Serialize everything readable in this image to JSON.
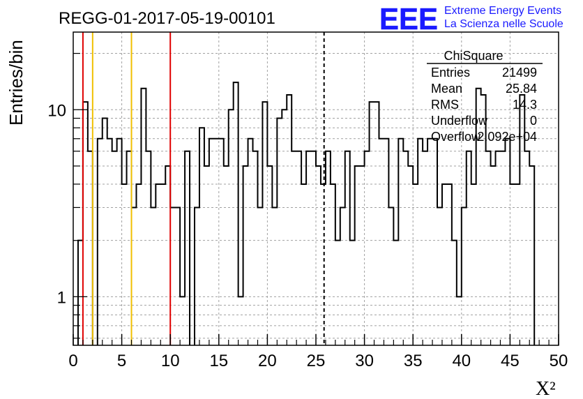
{
  "header": {
    "run_title": "REGG-01-2017-05-19-00101",
    "logo_text": "EEE",
    "org_line1": "Extreme Energy Events",
    "org_line2": "La Scienza nelle Scuole"
  },
  "stats_box": {
    "title": "ChiSquare",
    "rows": [
      {
        "label": "Entries",
        "value": "21499"
      },
      {
        "label": "Mean",
        "value": "25.84"
      },
      {
        "label": "RMS",
        "value": "14.3"
      },
      {
        "label": "Underflow",
        "value": "0"
      },
      {
        "label": "Overflow",
        "value": "2.092e+04"
      }
    ]
  },
  "colors": {
    "histogram": "#000000",
    "red_line": "#e00000",
    "yellow_line": "#f0c000",
    "grid": "#a0a0a0",
    "logo_blue": "#1a1aff"
  },
  "chart_data": {
    "type": "histogram",
    "xlabel": "X²",
    "ylabel": "Entries/bin",
    "xlim": [
      0,
      50
    ],
    "ylim": [
      0.55,
      26
    ],
    "yscale": "log",
    "grid": true,
    "x_ticks": [
      0,
      5,
      10,
      15,
      20,
      25,
      30,
      35,
      40,
      45,
      50
    ],
    "x_tick_labels": [
      "0",
      "5",
      "10",
      "15",
      "20",
      "25",
      "30",
      "35",
      "40",
      "45",
      "50"
    ],
    "y_ticks": [
      1,
      10
    ],
    "y_tick_labels": [
      "1",
      "10"
    ],
    "bin_width": 0.5,
    "bin_start": 0,
    "values": [
      0,
      2,
      11,
      6,
      0,
      7,
      9,
      7,
      6,
      7,
      4,
      6,
      3,
      4,
      13,
      6,
      3,
      4,
      4,
      5,
      3,
      3,
      1,
      6,
      0,
      3,
      8,
      5,
      7,
      7,
      7,
      5,
      10,
      14,
      1,
      5,
      7,
      6,
      3,
      11,
      5,
      3,
      9,
      10,
      12,
      6,
      6,
      4,
      6,
      6,
      5,
      4,
      6,
      4,
      2,
      3,
      6,
      2,
      5,
      5,
      6,
      11,
      11,
      7,
      7,
      3,
      2,
      7,
      6,
      5,
      4,
      7,
      6,
      7,
      7,
      3,
      4,
      4,
      2,
      1,
      3,
      6,
      4,
      13,
      12,
      6,
      5,
      6,
      6,
      7,
      4,
      4,
      12,
      6,
      5,
      0,
      0,
      0,
      0,
      0
    ],
    "markers": [
      {
        "type": "vline",
        "x": 1,
        "color": "red"
      },
      {
        "type": "vline",
        "x": 2,
        "color": "yellow"
      },
      {
        "type": "vline",
        "x": 6,
        "color": "yellow"
      },
      {
        "type": "vline",
        "x": 10,
        "color": "red"
      },
      {
        "type": "vline",
        "x": 25.84,
        "color": "black",
        "style": "dashed"
      }
    ]
  }
}
